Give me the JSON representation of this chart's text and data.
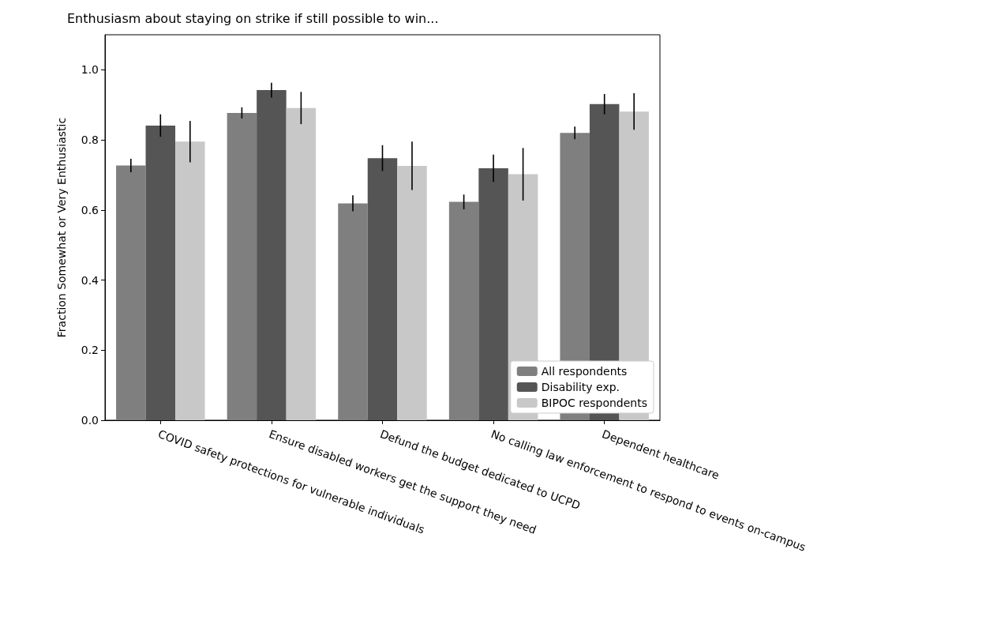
{
  "chart_data": {
    "type": "bar",
    "title": "Enthusiasm about staying on strike if still possible to win...",
    "ylabel": "Fraction Somewhat or Very Enthusiastic",
    "categories": [
      "COVID safety protections for vulnerable individuals",
      "Ensure disabled workers get the support they need",
      "Defund the budget dedicated to UCPD",
      "No calling law enforcement to respond to events on-campus",
      "Dependent healthcare"
    ],
    "series": [
      {
        "name": "All respondents",
        "color": "#7f7f7f",
        "values": [
          0.727,
          0.877,
          0.619,
          0.623,
          0.82
        ],
        "errors": [
          0.019,
          0.016,
          0.023,
          0.021,
          0.018
        ]
      },
      {
        "name": "Disability exp.",
        "color": "#555555",
        "values": [
          0.841,
          0.942,
          0.748,
          0.719,
          0.902
        ],
        "errors": [
          0.032,
          0.021,
          0.037,
          0.039,
          0.029
        ]
      },
      {
        "name": "BIPOC respondents",
        "color": "#c8c8c8",
        "values": [
          0.795,
          0.891,
          0.726,
          0.702,
          0.881
        ],
        "errors": [
          0.059,
          0.046,
          0.069,
          0.075,
          0.052
        ]
      }
    ],
    "ylim": [
      0,
      1.1
    ],
    "yticks": [
      {
        "value": 0,
        "label": "0.0"
      },
      {
        "value": 0.2,
        "label": "0.2"
      },
      {
        "value": 0.4,
        "label": "0.4"
      },
      {
        "value": 0.6,
        "label": "0.6"
      },
      {
        "value": 0.8,
        "label": "0.8"
      },
      {
        "value": 1.0,
        "label": "1.0"
      }
    ],
    "legend": "bottom right",
    "grid": false
  }
}
